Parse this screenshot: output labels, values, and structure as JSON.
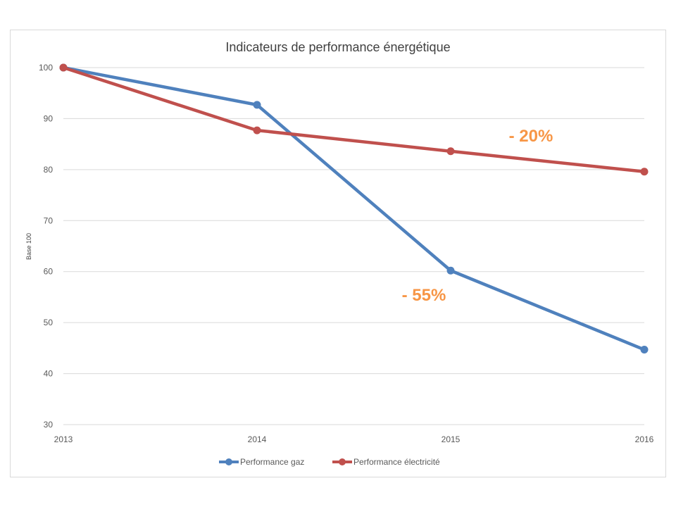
{
  "chart_data": {
    "type": "line",
    "title": "Indicateurs de performance énergétique",
    "xlabel": "",
    "ylabel": "Base 100",
    "x": [
      "2013",
      "2014",
      "2015",
      "2016"
    ],
    "ylim": [
      30,
      100
    ],
    "yticks": [
      30,
      40,
      50,
      60,
      70,
      80,
      90,
      100
    ],
    "grid": true,
    "legend": "bottom",
    "series": [
      {
        "name": "Performance gaz",
        "color": "#4f81bd",
        "values": [
          100,
          92.7,
          60.2,
          44.7
        ]
      },
      {
        "name": "Performance électricité",
        "color": "#c0504d",
        "values": [
          100,
          87.7,
          83.6,
          79.6
        ]
      }
    ],
    "annotations": [
      {
        "text": "- 20%",
        "color": "#f79646",
        "x": "2015",
        "y": 85.5,
        "near_series": "Performance électricité"
      },
      {
        "text": "- 55%",
        "color": "#f79646",
        "x": "2015",
        "y": 54.3,
        "near_series": "Performance gaz"
      }
    ]
  }
}
